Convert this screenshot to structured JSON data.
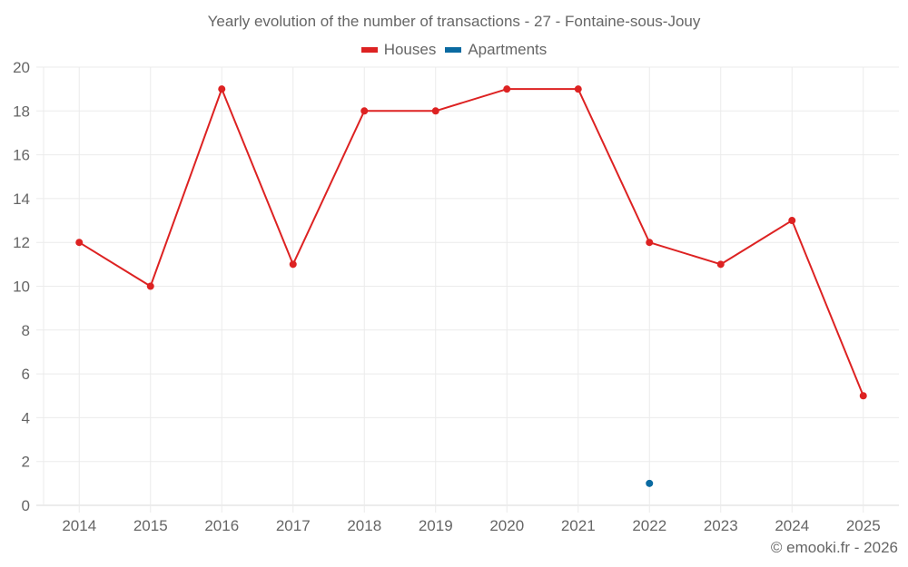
{
  "chart_data": {
    "type": "line",
    "title": "Yearly evolution of the number of transactions - 27 - Fontaine-sous-Jouy",
    "xlabel": "",
    "ylabel": "",
    "categories": [
      "2014",
      "2015",
      "2016",
      "2017",
      "2018",
      "2019",
      "2020",
      "2021",
      "2022",
      "2023",
      "2024",
      "2025"
    ],
    "series": [
      {
        "name": "Houses",
        "color": "#dd2222",
        "values": [
          12,
          10,
          19,
          11,
          18,
          18,
          19,
          19,
          12,
          11,
          13,
          5
        ]
      },
      {
        "name": "Apartments",
        "color": "#0a6aa1",
        "values": [
          null,
          null,
          null,
          null,
          null,
          null,
          null,
          null,
          1,
          null,
          null,
          null
        ]
      }
    ],
    "ylim": [
      0,
      20
    ],
    "yticks": [
      0,
      2,
      4,
      6,
      8,
      10,
      12,
      14,
      16,
      18,
      20
    ],
    "grid": true,
    "legend_position": "top"
  },
  "credit": "© emooki.fr - 2026"
}
